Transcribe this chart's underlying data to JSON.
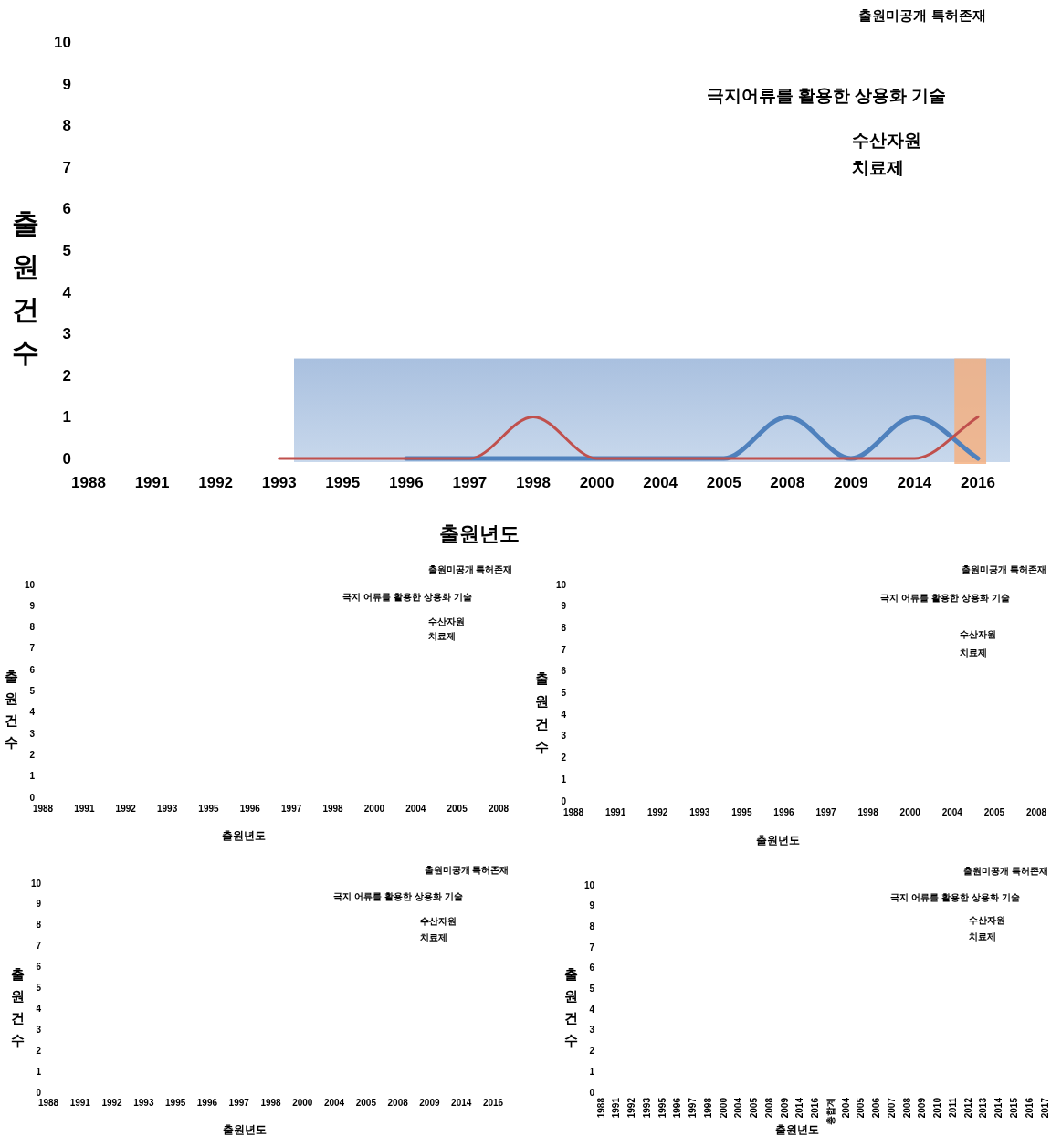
{
  "chart_data": [
    {
      "type": "line",
      "xlabel": "출원년도",
      "ylabel": "출원건수",
      "categories": [
        "1988",
        "1991",
        "1992",
        "1993",
        "1995",
        "1996",
        "1997",
        "1998",
        "2000",
        "2004",
        "2005",
        "2008",
        "2009",
        "2014",
        "2016"
      ],
      "ylim": [
        0,
        10
      ],
      "yticks": [
        0,
        1,
        2,
        3,
        4,
        5,
        6,
        7,
        8,
        9,
        10
      ],
      "series": [
        {
          "color": "#4f81bd",
          "values": [
            null,
            null,
            null,
            null,
            null,
            0,
            0,
            0,
            0,
            0,
            0,
            1,
            0,
            1,
            0
          ]
        },
        {
          "color": "#c0504d",
          "values": [
            null,
            null,
            null,
            0,
            0,
            0,
            0,
            1,
            0,
            0,
            0,
            0,
            0,
            0,
            1
          ]
        }
      ],
      "bands": [
        {
          "axis": "x",
          "from": "2016",
          "to": "2016",
          "color": "#f4b183"
        }
      ],
      "annotations": [
        "출원미공개 특허존재",
        "극지어류를 활용한 상용화 기술",
        "수산자원",
        "치료제"
      ]
    },
    {
      "type": "line",
      "xlabel": "출원년도",
      "ylabel": "출원건수",
      "categories": [
        "1988",
        "1991",
        "1992",
        "1993",
        "1995",
        "1996",
        "1997",
        "1998",
        "2000",
        "2004",
        "2005",
        "2008"
      ],
      "ylim": [
        0,
        10
      ],
      "yticks": [
        0,
        1,
        2,
        3,
        4,
        5,
        6,
        7,
        8,
        9,
        10
      ],
      "annotations": [
        "출원미공개 특허존재",
        "극지 어류를 활용한 상용화 기술",
        "수산자원",
        "치료제"
      ]
    },
    {
      "type": "line",
      "xlabel": "출원년도",
      "ylabel": "출원건수",
      "categories": [
        "1988",
        "1991",
        "1992",
        "1993",
        "1995",
        "1996",
        "1997",
        "1998",
        "2000",
        "2004",
        "2005",
        "2008"
      ],
      "ylim": [
        0,
        10
      ],
      "yticks": [
        0,
        1,
        2,
        3,
        4,
        5,
        6,
        7,
        8,
        9,
        10
      ],
      "annotations": [
        "출원미공개 특허존재",
        "극지 어류를 활용한 상용화 기술",
        "수산자원",
        "치료제"
      ]
    },
    {
      "type": "line",
      "xlabel": "출원년도",
      "ylabel": "출원건수",
      "categories": [
        "1988",
        "1991",
        "1992",
        "1993",
        "1995",
        "1996",
        "1997",
        "1998",
        "2000",
        "2004",
        "2005",
        "2008",
        "2009",
        "2014",
        "2016"
      ],
      "ylim": [
        0,
        10
      ],
      "yticks": [
        0,
        1,
        2,
        3,
        4,
        5,
        6,
        7,
        8,
        9,
        10
      ],
      "annotations": [
        "출원미공개 특허존재",
        "극지 어류를 활용한 상용화 기술",
        "수산자원",
        "치료제"
      ]
    },
    {
      "type": "line",
      "xlabel": "출원년도",
      "ylabel": "출원건수",
      "categories": [
        "1988",
        "1991",
        "1992",
        "1993",
        "1995",
        "1996",
        "1997",
        "1998",
        "2000",
        "2004",
        "2005",
        "2008",
        "2009",
        "2014",
        "2016",
        "총합계",
        "2004",
        "2005",
        "2006",
        "2007",
        "2008",
        "2009",
        "2010",
        "2011",
        "2012",
        "2013",
        "2014",
        "2015",
        "2016",
        "2017"
      ],
      "ylim": [
        0,
        10
      ],
      "yticks": [
        0,
        1,
        2,
        3,
        4,
        5,
        6,
        7,
        8,
        9,
        10
      ],
      "annotations": [
        "출원미공개 특허존재",
        "극지 어류를 활용한 상용화 기술",
        "수산자원",
        "치료제"
      ]
    }
  ]
}
